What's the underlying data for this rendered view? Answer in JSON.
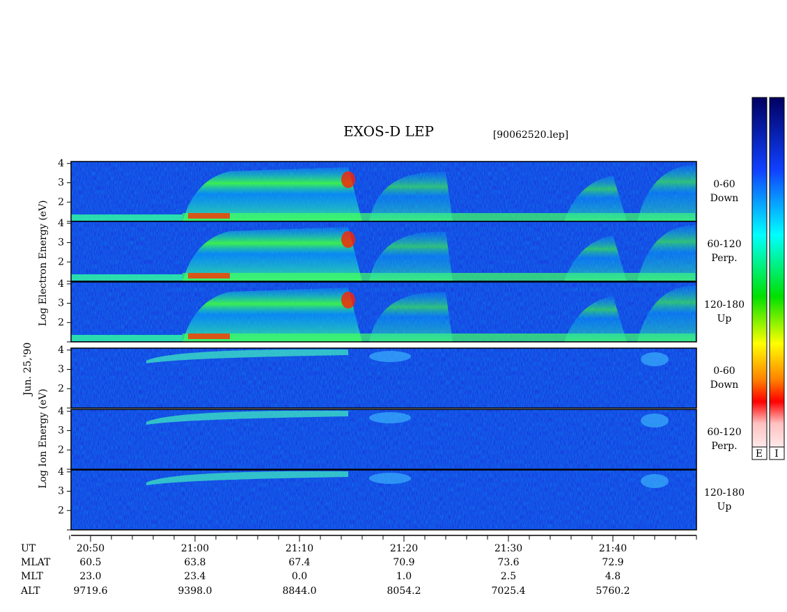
{
  "chart_data": {
    "type": "spectrogram",
    "title": "EXOS-D LEP",
    "file": "[90062520.lep]",
    "date": "Jun. 25,'90",
    "electron_label": "Log  Electron  Energy (eV)",
    "ion_label": "Log  Ion  Energy (eV)",
    "colorbar_labels": [
      "E",
      "I"
    ],
    "ylim": [
      1,
      4.1
    ],
    "yticks": [
      2,
      3,
      4
    ],
    "panels": [
      {
        "species": "electron",
        "pitch": "0-60",
        "direction": "Down"
      },
      {
        "species": "electron",
        "pitch": "60-120",
        "direction": "Perp."
      },
      {
        "species": "electron",
        "pitch": "120-180",
        "direction": "Up"
      },
      {
        "species": "ion",
        "pitch": "0-60",
        "direction": "Down"
      },
      {
        "species": "ion",
        "pitch": "60-120",
        "direction": "Perp."
      },
      {
        "species": "ion",
        "pitch": "120-180",
        "direction": "Up"
      }
    ],
    "ephemeris": [
      {
        "name": "UT",
        "values": [
          "20:50",
          "21:00",
          "21:10",
          "21:20",
          "21:30",
          "21:40"
        ]
      },
      {
        "name": "MLAT",
        "values": [
          "60.5",
          "63.8",
          "67.4",
          "70.9",
          "73.6",
          "72.9"
        ]
      },
      {
        "name": "MLT",
        "values": [
          "23.0",
          "23.4",
          "0.0",
          "1.0",
          "2.5",
          "4.8"
        ]
      },
      {
        "name": "ALT",
        "values": [
          "9719.6",
          "9398.0",
          "8844.0",
          "8054.2",
          "7025.4",
          "5760.2"
        ]
      }
    ]
  }
}
